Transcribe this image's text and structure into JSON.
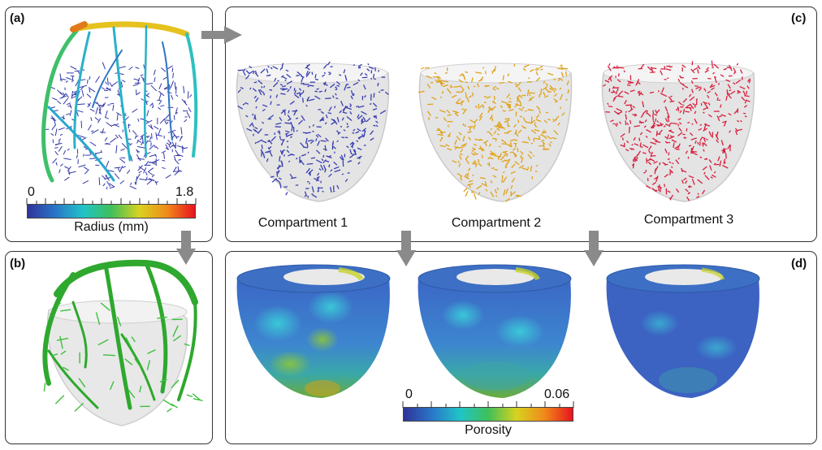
{
  "panels": {
    "a": {
      "label": "(a)"
    },
    "b": {
      "label": "(b)"
    },
    "c": {
      "label": "(c)"
    },
    "d": {
      "label": "(d)"
    }
  },
  "compartments": [
    {
      "label": "Compartment 1",
      "color": "#3a3fb0"
    },
    {
      "label": "Compartment 2",
      "color": "#e0a21a"
    },
    {
      "label": "Compartment 3",
      "color": "#d81f3c"
    }
  ],
  "radius_colorbar": {
    "min_label": "0",
    "max_label": "1.8",
    "title": "Radius (mm)"
  },
  "porosity_colorbar": {
    "min_label": "0",
    "max_label": "0.06",
    "title": "Porosity"
  },
  "tree_color": "#2bb02b"
}
